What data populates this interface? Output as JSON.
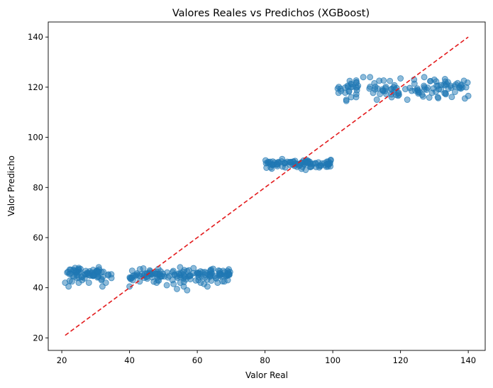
{
  "chart_data": {
    "type": "scatter",
    "title": "Valores Reales vs Predichos (XGBoost)",
    "xlabel": "Valor Real",
    "ylabel": "Valor Predicho",
    "xlim": [
      16,
      145
    ],
    "ylim": [
      15,
      146
    ],
    "xticks": [
      20,
      40,
      60,
      80,
      100,
      120,
      140
    ],
    "yticks": [
      20,
      40,
      60,
      80,
      100,
      120,
      140
    ],
    "grid": false,
    "legend": "none",
    "point_color": "#1f77b4",
    "reference_line": {
      "x": [
        21,
        140
      ],
      "y": [
        21,
        140
      ],
      "color": "#e31a1c",
      "style": "dashed"
    },
    "clusters": [
      {
        "x_range": [
          21,
          35
        ],
        "y_center": 45.5,
        "y_spread": 1.2,
        "count": 70
      },
      {
        "x_range": [
          40,
          70
        ],
        "y_center": 45.3,
        "y_spread": 1.2,
        "count": 140
      },
      {
        "x_range": [
          80,
          100
        ],
        "y_center": 89.5,
        "y_spread": 0.8,
        "count": 90
      },
      {
        "x_range": [
          100,
          140
        ],
        "y_center": 119.5,
        "y_spread": 1.6,
        "count": 110
      }
    ],
    "outliers": [
      [
        21,
        42
      ],
      [
        22,
        40.5
      ],
      [
        23,
        42.5
      ],
      [
        25,
        42
      ],
      [
        26,
        43
      ],
      [
        28,
        42
      ],
      [
        32,
        40.5
      ],
      [
        33,
        42
      ],
      [
        40,
        40.5
      ],
      [
        41,
        43
      ],
      [
        43,
        42.5
      ],
      [
        48,
        42
      ],
      [
        51,
        41
      ],
      [
        53,
        41.5
      ],
      [
        54,
        39.5
      ],
      [
        55,
        42
      ],
      [
        56,
        40.5
      ],
      [
        57,
        39
      ],
      [
        61,
        42
      ],
      [
        62,
        41.5
      ],
      [
        63,
        40.5
      ],
      [
        66,
        42
      ],
      [
        68,
        42.5
      ],
      [
        69,
        43
      ],
      [
        82,
        87.5
      ],
      [
        86,
        88
      ],
      [
        92,
        87
      ],
      [
        96,
        88
      ],
      [
        104,
        114.5
      ],
      [
        104,
        115
      ],
      [
        105,
        122.5
      ],
      [
        107,
        122
      ],
      [
        109,
        124
      ],
      [
        111,
        124
      ],
      [
        113,
        115
      ],
      [
        118,
        120
      ],
      [
        120,
        123.5
      ],
      [
        122,
        115
      ],
      [
        124,
        123
      ],
      [
        127,
        124
      ],
      [
        130,
        123
      ],
      [
        131,
        116
      ],
      [
        134,
        122
      ],
      [
        138,
        121
      ],
      [
        139,
        115.5
      ],
      [
        140,
        116.5
      ]
    ]
  }
}
